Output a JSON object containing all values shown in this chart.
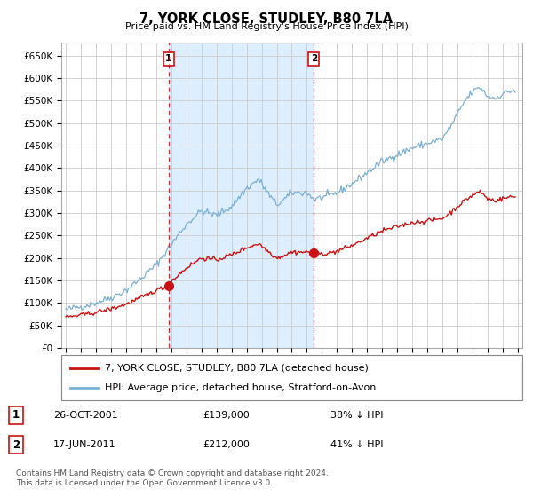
{
  "title": "7, YORK CLOSE, STUDLEY, B80 7LA",
  "subtitle": "Price paid vs. HM Land Registry's House Price Index (HPI)",
  "legend_line1": "7, YORK CLOSE, STUDLEY, B80 7LA (detached house)",
  "legend_line2": "HPI: Average price, detached house, Stratford-on-Avon",
  "footnote": "Contains HM Land Registry data © Crown copyright and database right 2024.\nThis data is licensed under the Open Government Licence v3.0.",
  "hpi_color": "#a8c8e8",
  "price_color": "#cc1111",
  "marker1_x": 2001.82,
  "marker1_y": 139000,
  "marker2_x": 2011.46,
  "marker2_y": 212000,
  "annotation1_date": "26-OCT-2001",
  "annotation1_price": "£139,000",
  "annotation1_pct": "38% ↓ HPI",
  "annotation2_date": "17-JUN-2011",
  "annotation2_price": "£212,000",
  "annotation2_pct": "41% ↓ HPI",
  "ylim_min": 0,
  "ylim_max": 680000,
  "yticks": [
    0,
    50000,
    100000,
    150000,
    200000,
    250000,
    300000,
    350000,
    400000,
    450000,
    500000,
    550000,
    600000,
    650000
  ],
  "xlim_min": 1994.7,
  "xlim_max": 2025.3,
  "background_color": "#ffffff",
  "grid_color": "#cccccc",
  "shade_color": "#ddeeff",
  "hpi_line_color": "#7ab0d4"
}
